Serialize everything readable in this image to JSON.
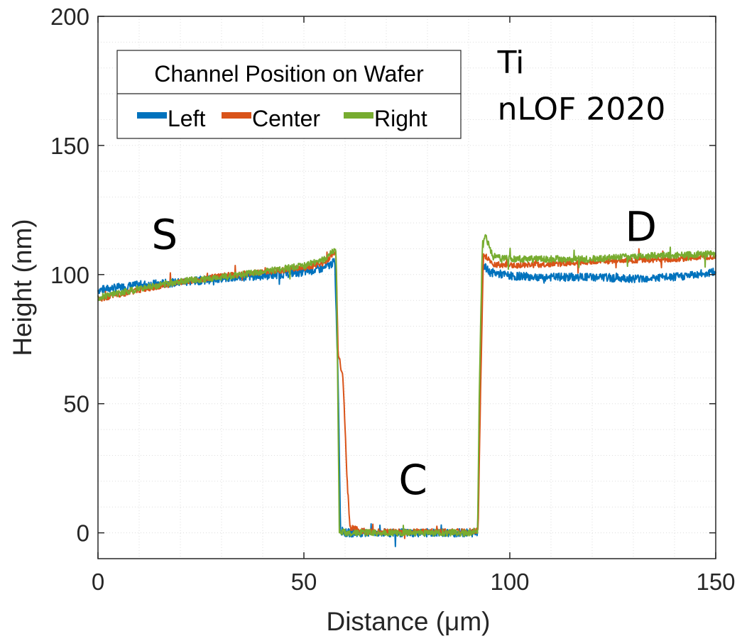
{
  "chart_data": {
    "type": "line",
    "title": "",
    "xlabel": "Distance (μm)",
    "ylabel": "Height (nm)",
    "xlim": [
      0,
      150
    ],
    "ylim": [
      -10,
      200
    ],
    "xticks": [
      0,
      50,
      100,
      150
    ],
    "yticks": [
      0,
      50,
      100,
      150,
      200
    ],
    "minor_grid": true,
    "legend": {
      "title": "Channel Position on Wafer",
      "placement": "top-left",
      "orientation": "horizontal"
    },
    "annotations": [
      {
        "text": "Ti",
        "x": 97,
        "y": 178
      },
      {
        "text": "nLOF 2020",
        "x": 97,
        "y": 160
      },
      {
        "text": "S",
        "x": 13,
        "y": 110
      },
      {
        "text": "C",
        "x": 73,
        "y": 15
      },
      {
        "text": "D",
        "x": 128,
        "y": 113
      }
    ],
    "series": [
      {
        "name": "Left",
        "color": "#0072BD",
        "noise": 1.6,
        "points": [
          [
            0,
            94
          ],
          [
            10,
            96
          ],
          [
            20,
            97
          ],
          [
            30,
            98.5
          ],
          [
            40,
            99.5
          ],
          [
            50,
            101
          ],
          [
            55,
            102.5
          ],
          [
            57.5,
            105
          ],
          [
            58.3,
            60
          ],
          [
            58.9,
            1
          ],
          [
            60,
            0
          ],
          [
            70,
            0
          ],
          [
            80,
            0
          ],
          [
            90,
            0
          ],
          [
            92.2,
            0
          ],
          [
            92.7,
            55
          ],
          [
            93.3,
            104
          ],
          [
            95,
            101
          ],
          [
            100,
            99.5
          ],
          [
            110,
            99
          ],
          [
            120,
            99
          ],
          [
            130,
            98.5
          ],
          [
            140,
            99
          ],
          [
            150,
            101
          ]
        ]
      },
      {
        "name": "Center",
        "color": "#D95319",
        "noise": 1.1,
        "points": [
          [
            0,
            90.5
          ],
          [
            10,
            94
          ],
          [
            20,
            97
          ],
          [
            30,
            99.5
          ],
          [
            40,
            101
          ],
          [
            50,
            102.5
          ],
          [
            55,
            104.5
          ],
          [
            57.8,
            109
          ],
          [
            58.3,
            70
          ],
          [
            59.5,
            60
          ],
          [
            60.5,
            20
          ],
          [
            61.2,
            2
          ],
          [
            65,
            0.5
          ],
          [
            70,
            0.5
          ],
          [
            80,
            0.5
          ],
          [
            90,
            0.5
          ],
          [
            92.3,
            1
          ],
          [
            92.9,
            55
          ],
          [
            93.6,
            108
          ],
          [
            96,
            104
          ],
          [
            100,
            103.5
          ],
          [
            110,
            104
          ],
          [
            120,
            105
          ],
          [
            130,
            105.5
          ],
          [
            140,
            106
          ],
          [
            150,
            107
          ]
        ]
      },
      {
        "name": "Right",
        "color": "#77AC30",
        "noise": 1.3,
        "points": [
          [
            0,
            91
          ],
          [
            10,
            94.5
          ],
          [
            20,
            97.5
          ],
          [
            30,
            99
          ],
          [
            40,
            101
          ],
          [
            50,
            103.5
          ],
          [
            55,
            106
          ],
          [
            57.8,
            110
          ],
          [
            58.2,
            60
          ],
          [
            58.6,
            1
          ],
          [
            60,
            0
          ],
          [
            70,
            0
          ],
          [
            80,
            0
          ],
          [
            90,
            0
          ],
          [
            92.2,
            1
          ],
          [
            92.6,
            55
          ],
          [
            93.3,
            110
          ],
          [
            94,
            115
          ],
          [
            96,
            107
          ],
          [
            100,
            106
          ],
          [
            110,
            106
          ],
          [
            120,
            106
          ],
          [
            130,
            107
          ],
          [
            140,
            107.5
          ],
          [
            150,
            108
          ]
        ]
      }
    ]
  }
}
